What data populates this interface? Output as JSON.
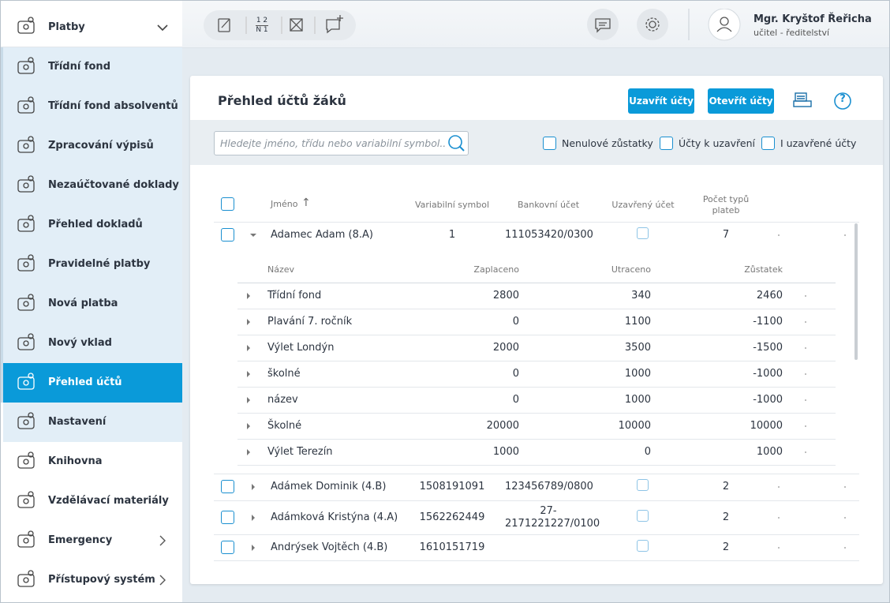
{
  "sidebar": {
    "header": "Platby",
    "items": [
      "Třídní fond",
      "Třídní fond absolventů",
      "Zpracování výpisů",
      "Nezaúčtované doklady",
      "Přehled dokladů",
      "Pravidelné platby",
      "Nová platba",
      "Nový vklad",
      "Přehled účtů",
      "Nastavení",
      "Knihovna",
      "Vzdělávací materiály",
      "Emergency",
      "Přístupový systém"
    ]
  },
  "toolbar": {
    "numbering_icon": [
      "1 2",
      "N 1"
    ]
  },
  "user": {
    "name": "Mgr. Kryštof Řeřicha",
    "role": "učitel - ředitelství"
  },
  "panel": {
    "title": "Přehled účtů žáků",
    "buttons": [
      "Uzavřít účty",
      "Otevřít účty"
    ],
    "help": "?",
    "search_placeholder": "Hledejte jméno, třídu nebo variabilní symbol..",
    "filters": [
      "Nenulové zůstatky",
      "Účty k uzavření",
      "I uzavřené účty"
    ]
  },
  "table": {
    "headers": [
      "Jméno",
      "Variabilní symbol",
      "Bankovní účet",
      "Uzavřený účet",
      "Počet typů plateb"
    ],
    "sort_indicator": "↑",
    "rows": [
      [
        "Adamec Adam (8.A)",
        "1",
        "111053420/0300",
        7
      ],
      [
        "Adámek Dominik (4.B)",
        "1508191091",
        "123456789/0800",
        2
      ],
      [
        "Adámková Kristýna (4.A)",
        "1562262449",
        "27-2171221227/0100",
        2
      ],
      [
        "Andrýsek Vojtěch (4.B)",
        "1610151719",
        "",
        2
      ]
    ]
  },
  "subtable": {
    "headers": [
      "Název",
      "Zaplaceno",
      "Utraceno",
      "Zůstatek"
    ],
    "rows": [
      [
        "Třídní fond",
        2800,
        340,
        2460
      ],
      [
        "Plavání 7. ročník",
        0,
        1100,
        -1100
      ],
      [
        "Výlet Londýn",
        2000,
        3500,
        -1500
      ],
      [
        "školné",
        0,
        1000,
        -1000
      ],
      [
        "název",
        0,
        1000,
        -1000
      ],
      [
        "Školné",
        20000,
        10000,
        10000
      ],
      [
        "Výlet Terezín",
        1000,
        0,
        1000
      ]
    ]
  }
}
